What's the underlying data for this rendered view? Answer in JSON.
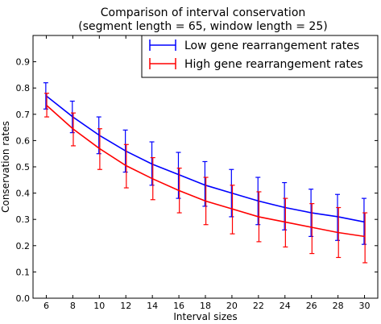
{
  "chart_data": {
    "type": "line",
    "title": "Comparison of interval conservation",
    "subtitle": "(segment length = 65, window length = 25)",
    "xlabel": "Interval sizes",
    "ylabel": "Conservation rates",
    "xlim": [
      5,
      31
    ],
    "ylim": [
      0.0,
      1.0
    ],
    "xticks": [
      6,
      8,
      10,
      12,
      14,
      16,
      18,
      20,
      22,
      24,
      26,
      28,
      30
    ],
    "yticks": [
      0.0,
      0.1,
      0.2,
      0.3,
      0.4,
      0.5,
      0.6,
      0.7,
      0.8,
      0.9
    ],
    "x": [
      6,
      8,
      10,
      12,
      14,
      16,
      18,
      20,
      22,
      24,
      26,
      28,
      30
    ],
    "series": [
      {
        "name": "Low gene rearrangement rates",
        "color": "#0000ff",
        "values": [
          0.77,
          0.69,
          0.62,
          0.56,
          0.51,
          0.47,
          0.43,
          0.4,
          0.37,
          0.345,
          0.325,
          0.31,
          0.29
        ],
        "err_low": [
          0.72,
          0.63,
          0.55,
          0.48,
          0.43,
          0.38,
          0.35,
          0.31,
          0.28,
          0.26,
          0.235,
          0.22,
          0.205
        ],
        "err_high": [
          0.82,
          0.75,
          0.69,
          0.64,
          0.595,
          0.555,
          0.52,
          0.49,
          0.46,
          0.44,
          0.415,
          0.395,
          0.38
        ]
      },
      {
        "name": "High gene rearrangement rates",
        "color": "#ff0000",
        "values": [
          0.735,
          0.645,
          0.57,
          0.505,
          0.455,
          0.41,
          0.37,
          0.34,
          0.31,
          0.29,
          0.27,
          0.25,
          0.235
        ],
        "err_low": [
          0.69,
          0.58,
          0.49,
          0.42,
          0.375,
          0.325,
          0.28,
          0.245,
          0.215,
          0.195,
          0.17,
          0.155,
          0.135
        ],
        "err_high": [
          0.78,
          0.705,
          0.645,
          0.585,
          0.535,
          0.495,
          0.46,
          0.43,
          0.405,
          0.38,
          0.36,
          0.345,
          0.325
        ]
      }
    ],
    "legend": "top-right",
    "grid": false
  }
}
